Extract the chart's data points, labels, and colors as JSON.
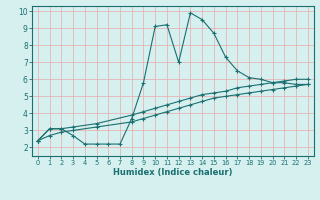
{
  "xlabel": "Humidex (Indice chaleur)",
  "xlim": [
    -0.5,
    23.5
  ],
  "ylim": [
    1.5,
    10.3
  ],
  "yticks": [
    2,
    3,
    4,
    5,
    6,
    7,
    8,
    9,
    10
  ],
  "xticks": [
    0,
    1,
    2,
    3,
    4,
    5,
    6,
    7,
    8,
    9,
    10,
    11,
    12,
    13,
    14,
    15,
    16,
    17,
    18,
    19,
    20,
    21,
    22,
    23
  ],
  "bg_color": "#d6efef",
  "grid_color": "#e8aaaa",
  "line_color": "#1a7070",
  "line1_x": [
    0,
    1,
    2,
    3,
    4,
    5,
    6,
    7,
    8,
    9,
    10,
    11,
    12,
    13,
    14,
    15,
    16,
    17,
    18,
    19,
    20,
    21,
    22,
    23
  ],
  "line1_y": [
    2.4,
    3.1,
    3.1,
    2.7,
    2.2,
    2.2,
    2.2,
    2.2,
    3.7,
    5.8,
    9.1,
    9.2,
    7.0,
    9.9,
    9.5,
    8.7,
    7.3,
    6.5,
    6.1,
    6.0,
    5.8,
    5.8,
    5.7,
    5.7
  ],
  "line2_x": [
    0,
    1,
    2,
    3,
    5,
    8,
    9,
    10,
    11,
    12,
    13,
    14,
    15,
    16,
    17,
    18,
    19,
    20,
    21,
    22,
    23
  ],
  "line2_y": [
    2.4,
    3.1,
    3.1,
    3.2,
    3.4,
    3.9,
    4.1,
    4.3,
    4.5,
    4.7,
    4.9,
    5.1,
    5.2,
    5.3,
    5.5,
    5.6,
    5.7,
    5.8,
    5.9,
    6.0,
    6.0
  ],
  "line3_x": [
    0,
    1,
    2,
    3,
    5,
    8,
    9,
    10,
    11,
    12,
    13,
    14,
    15,
    16,
    17,
    18,
    19,
    20,
    21,
    22,
    23
  ],
  "line3_y": [
    2.4,
    2.7,
    2.9,
    3.0,
    3.2,
    3.5,
    3.7,
    3.9,
    4.1,
    4.3,
    4.5,
    4.7,
    4.9,
    5.0,
    5.1,
    5.2,
    5.3,
    5.4,
    5.5,
    5.6,
    5.7
  ]
}
